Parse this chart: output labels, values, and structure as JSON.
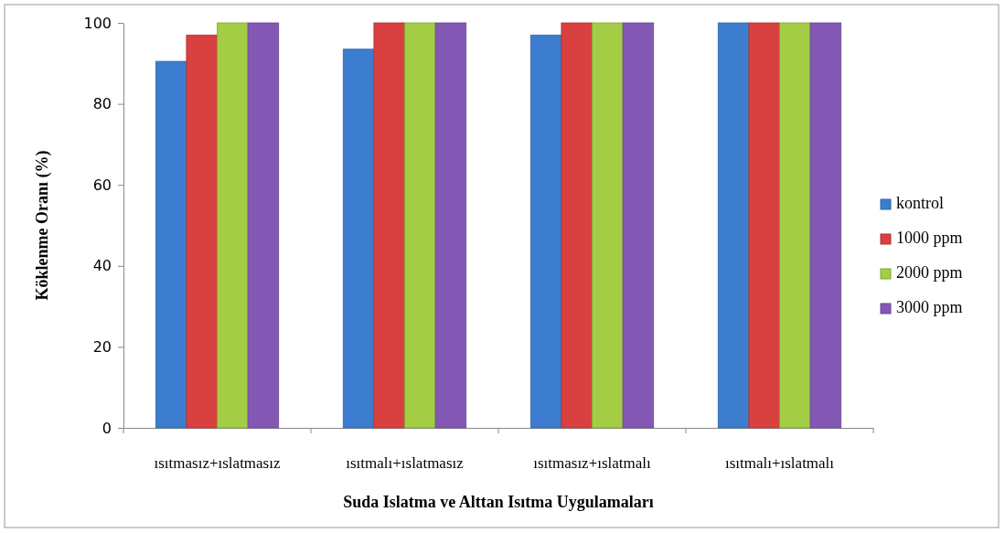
{
  "chart_data": {
    "type": "bar",
    "xlabel": "Suda Islatma ve Alttan Isıtma Uygulamaları",
    "ylabel": "Köklenme Oranı (%)",
    "categories": [
      "ısıtmasız+ıslatmasız",
      "ısıtmalı+ıslatmasız",
      "ısıtmasız+ıslatmalı",
      "ısıtmalı+ıslatmalı"
    ],
    "series": [
      {
        "name": "kontrol",
        "color": "#3c7dd0",
        "values": [
          90.5,
          93.5,
          97,
          100
        ]
      },
      {
        "name": "1000 ppm",
        "color": "#d94040",
        "values": [
          97,
          100,
          100,
          100
        ]
      },
      {
        "name": "2000 ppm",
        "color": "#a2cd45",
        "values": [
          100,
          100,
          100,
          100
        ]
      },
      {
        "name": "3000 ppm",
        "color": "#8458b5",
        "values": [
          100,
          100,
          100,
          100
        ]
      }
    ],
    "ylim": [
      0,
      100
    ],
    "yticks": [
      0,
      20,
      40,
      60,
      80,
      100
    ],
    "grid": false,
    "legend": "right"
  }
}
